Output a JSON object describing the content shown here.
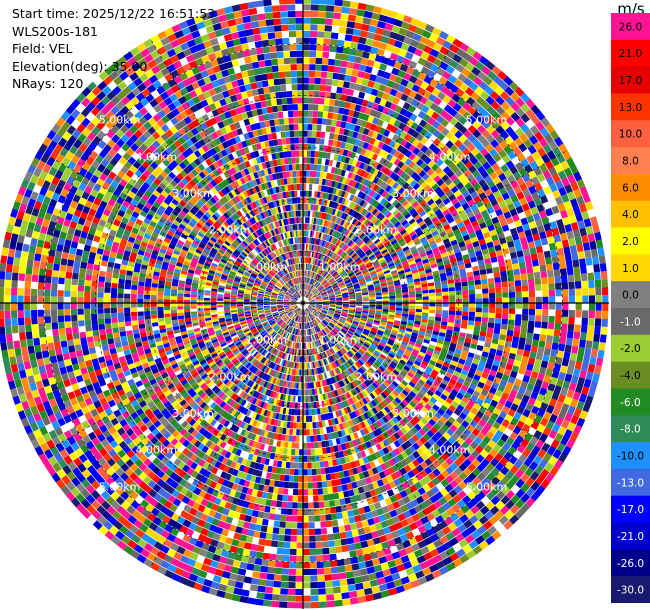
{
  "info": {
    "start_time": "Start time: 2025/12/22 16:51:53",
    "station": "WLS200s-181",
    "field": "Field: VEL",
    "elevation": "Elevation(deg): 35.00",
    "nrays": "NRays: 120"
  },
  "chart_data": {
    "type": "ppi",
    "range_rings_km": [
      1,
      2,
      3,
      4,
      5
    ],
    "ring_labels": [
      "1.00km",
      "2.00km",
      "3.00km",
      "4.00km",
      "5.00km"
    ],
    "nrays": 120,
    "colorbar": {
      "unit": "m/s",
      "ticks": [
        "26.0",
        "21.0",
        "17.0",
        "13.0",
        "10.0",
        "8.0",
        "6.0",
        "4.0",
        "2.0",
        "1.0",
        "0.0",
        "-1.0",
        "-2.0",
        "-4.0",
        "-6.0",
        "-8.0",
        "-10.0",
        "-13.0",
        "-17.0",
        "-21.0",
        "-26.0",
        "-30.0"
      ],
      "colors": [
        "#ff1493",
        "#ff0000",
        "#e60000",
        "#ff3300",
        "#ff6040",
        "#ff7f50",
        "#ff8c00",
        "#ffc000",
        "#ffff00",
        "#ffd700",
        "#808080",
        "#696969",
        "#9acd32",
        "#6b8e23",
        "#228b22",
        "#2e8b57",
        "#1e90ff",
        "#4169e1",
        "#0000ff",
        "#0000cd",
        "#00008b",
        "#191970"
      ]
    }
  }
}
